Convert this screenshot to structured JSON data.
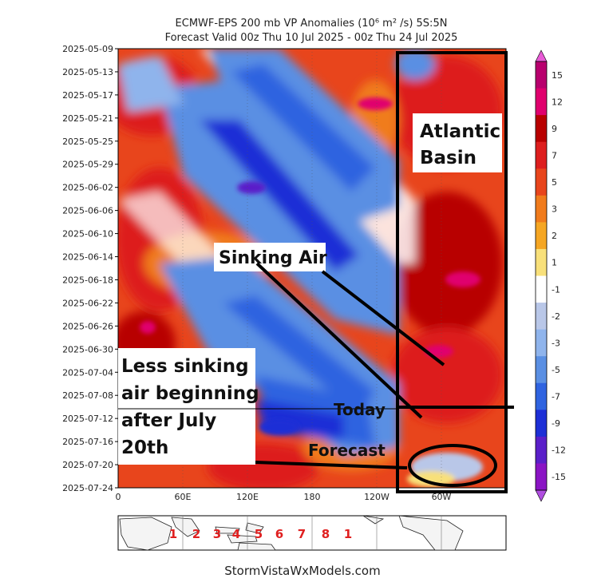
{
  "title_line1": "ECMWF-EPS 200 mb VP Anomalies (10⁶ m² /s) 5S:5N",
  "title_line2": "Forecast Valid 00z Thu 10 Jul 2025 - 00z Thu 24 Jul 2025",
  "credit": "StormVistaWxModels.com",
  "annotations": {
    "atlantic_line1": "Atlantic",
    "atlantic_line2": "Basin",
    "sinking": "Sinking Air",
    "less_line1": "Less sinking",
    "less_line2": "air beginning",
    "less_line3": "after July",
    "less_line4": "20th",
    "today": "Today",
    "forecast": "Forecast"
  },
  "mjo_phase_labels": [
    "1",
    "2",
    "3",
    "4",
    "5",
    "6",
    "7",
    "8",
    "1"
  ],
  "colors": {
    "frame": "#000000",
    "mjo_labels": "#e02020"
  },
  "chart_data": {
    "type": "heatmap",
    "title": "ECMWF-EPS 200 mb VP Anomalies (10⁶ m² /s) 5S:5N",
    "subtitle": "Forecast Valid 00z Thu 10 Jul 2025 - 00z Thu 24 Jul 2025",
    "y_tick_labels": [
      "2025-05-09",
      "2025-05-13",
      "2025-05-17",
      "2025-05-21",
      "2025-05-25",
      "2025-05-29",
      "2025-06-02",
      "2025-06-06",
      "2025-06-10",
      "2025-06-14",
      "2025-06-18",
      "2025-06-22",
      "2025-06-26",
      "2025-06-30",
      "2025-07-04",
      "2025-07-08",
      "2025-07-12",
      "2025-07-16",
      "2025-07-20",
      "2025-07-24"
    ],
    "y_range": [
      "2025-05-09",
      "2025-07-24"
    ],
    "x_tick_labels": [
      "0",
      "60E",
      "120E",
      "180",
      "120W",
      "60W"
    ],
    "x_range_deg_east": [
      0,
      360
    ],
    "x_tick_values_deg_east": [
      0,
      60,
      120,
      180,
      240,
      300
    ],
    "colorbar_ticks": [
      15,
      12,
      9,
      7,
      5,
      3,
      2,
      1,
      -1,
      -2,
      -3,
      -5,
      -7,
      -9,
      -12,
      -15
    ],
    "colorbar_colors": [
      "#b8006e",
      "#e0006e",
      "#b80000",
      "#dd1e1e",
      "#e8451c",
      "#f07b1c",
      "#f5a623",
      "#f8e07a",
      "#ffffff",
      "#b9c7e8",
      "#8fb4ec",
      "#5a8fe3",
      "#2f63e0",
      "#1d2fd6",
      "#5a1fc9",
      "#8a14c4"
    ],
    "grid": true,
    "today_date": "2025-07-10",
    "today_longitude_west_end_deg_east": 360,
    "features": [
      {
        "label": "Atlantic Basin",
        "lon_start_deg_east": 255,
        "lon_end_deg_east": 360
      },
      {
        "label": "Forecast",
        "date_start": "2025-07-10",
        "date_end": "2025-07-24"
      }
    ]
  }
}
